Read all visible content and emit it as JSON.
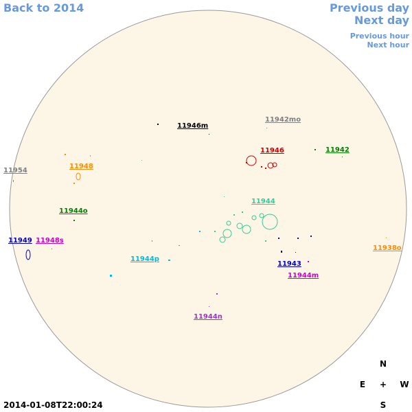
{
  "nav": {
    "back": "Back to 2014",
    "previous_day": "Previous day",
    "next_day": "Next day",
    "previous_hour": "Previous hour",
    "next_hour": "Next hour"
  },
  "regions": [
    {
      "label": "11946m",
      "color": "#000000"
    },
    {
      "label": "11942mo",
      "color": "#808080"
    },
    {
      "label": "11946",
      "color": "#cc0000"
    },
    {
      "label": "11942",
      "color": "#008000"
    },
    {
      "label": "11948",
      "color": "#ff8c00"
    },
    {
      "label": "11954",
      "color": "#808080"
    },
    {
      "label": "11944",
      "color": "#33cc99"
    },
    {
      "label": "11944o",
      "color": "#008000"
    },
    {
      "label": "11949",
      "color": "#0000cc"
    },
    {
      "label": "11948s",
      "color": "#cc00cc"
    },
    {
      "label": "11938o",
      "color": "#ff8c00"
    },
    {
      "label": "11944p",
      "color": "#00bbdd"
    },
    {
      "label": "11943",
      "color": "#0000cc"
    },
    {
      "label": "11944m",
      "color": "#cc00cc"
    },
    {
      "label": "11944n",
      "color": "#9933cc"
    }
  ],
  "timestamp": "2014-01-08T22:00:24",
  "compass": {
    "north": "N",
    "east": "E",
    "center": "+",
    "west": "W",
    "south": "S"
  }
}
